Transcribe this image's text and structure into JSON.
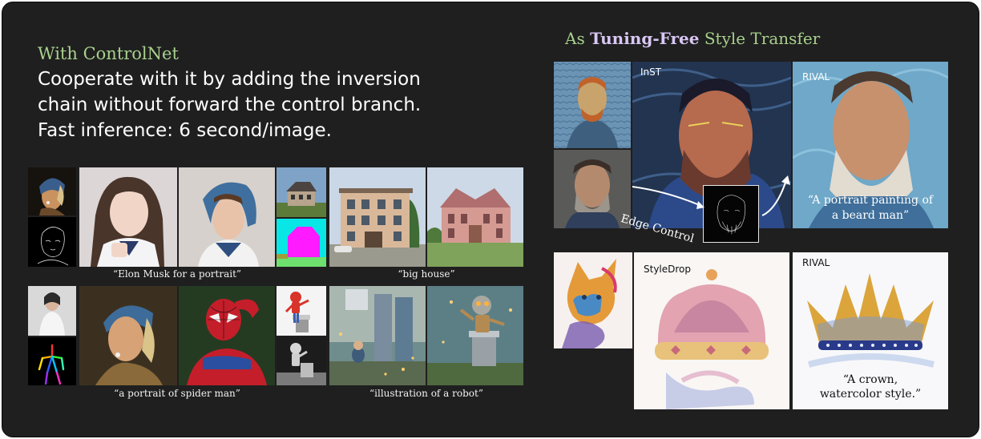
{
  "left": {
    "title": "With ControlNet",
    "lines": [
      "Cooperate  with it by adding the inversion",
      "chain without forward the control branch.",
      "Fast inference: 6 second/image."
    ],
    "captions": {
      "elon": "“Elon Musk for a portrait”",
      "house": "“big house”",
      "spider": "“a portrait of spider man”",
      "robot": "“illustration of a robot”"
    }
  },
  "right": {
    "title_prefix": "As ",
    "title_bold": "Tuning-Free",
    "title_suffix": " Style Transfer",
    "inst_label": "InST",
    "rival_label": "RIVAL",
    "edge_control": "Edge Control",
    "portrait_prompt_l1": "“A portrait painting of",
    "portrait_prompt_l2": "a beard man”",
    "styledrop_label": "StyleDrop",
    "rival_label_2": "RIVAL",
    "crown_prompt_l1": "“A crown,",
    "crown_prompt_l2": "watercolor style.”"
  },
  "colors": {
    "green": "#a8d08d",
    "lavender": "#d9c7f5",
    "panel": "#1f1f1f"
  }
}
